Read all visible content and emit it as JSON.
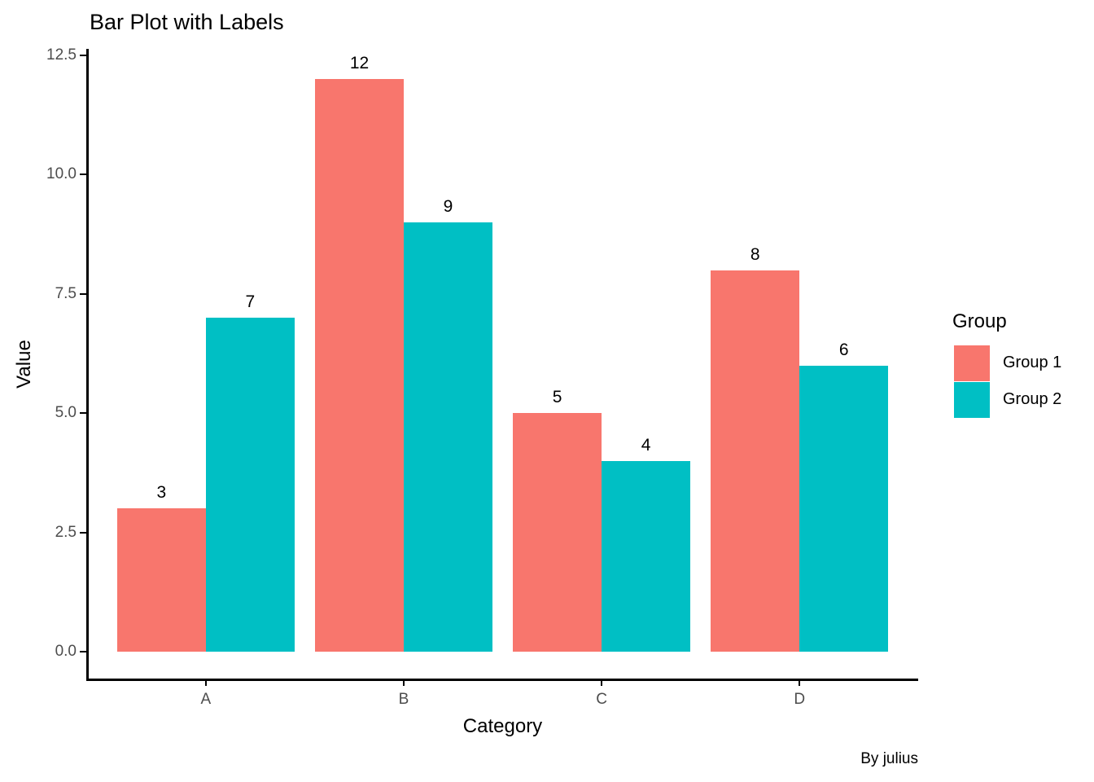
{
  "chart_data": {
    "type": "bar",
    "title": "Bar Plot with Labels",
    "xlabel": "Category",
    "ylabel": "Value",
    "categories": [
      "A",
      "B",
      "C",
      "D"
    ],
    "series": [
      {
        "name": "Group 1",
        "color": "#F8766D",
        "values": [
          3,
          12,
          5,
          8
        ]
      },
      {
        "name": "Group 2",
        "color": "#00BFC4",
        "values": [
          7,
          9,
          4,
          6
        ]
      }
    ],
    "y_ticks": [
      {
        "value": 0,
        "label": "0.0"
      },
      {
        "value": 2.5,
        "label": "2.5"
      },
      {
        "value": 5,
        "label": "5.0"
      },
      {
        "value": 7.5,
        "label": "7.5"
      },
      {
        "value": 10,
        "label": "10.0"
      },
      {
        "value": 12.5,
        "label": "12.5"
      }
    ],
    "ylim": [
      0,
      12.5
    ],
    "bar_value_labels": true,
    "grid": false,
    "legend_position": "right"
  },
  "legend": {
    "title": "Group"
  },
  "caption": "By julius",
  "colors": {
    "group1": "#F8766D",
    "group2": "#00BFC4",
    "axis_line": "#000000",
    "axis_tick_text": "#4d4d4d",
    "background": "#FFFFFF"
  }
}
